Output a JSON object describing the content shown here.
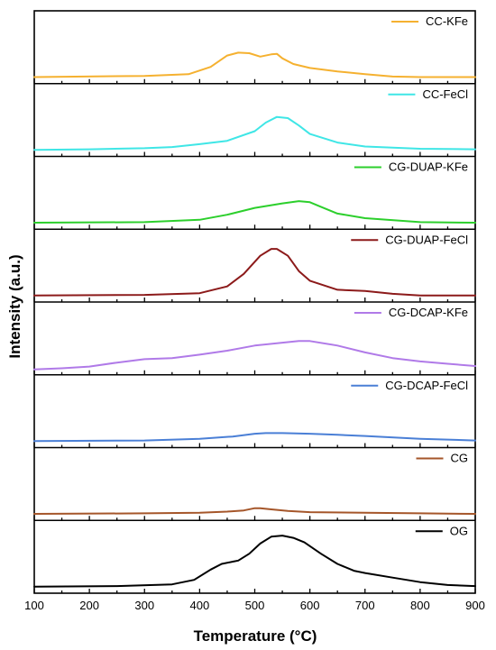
{
  "chart_data": {
    "type": "line",
    "xlabel": "Temperature (°C)",
    "ylabel": "Intensity (a.u.)",
    "xlim": [
      100,
      900
    ],
    "xticks": [
      "100",
      "200",
      "300",
      "400",
      "500",
      "600",
      "700",
      "800",
      "900"
    ],
    "xtick_values": [
      100,
      200,
      300,
      400,
      500,
      600,
      700,
      800,
      900
    ],
    "stacked_panels": true,
    "legend_position": "top-right of each panel",
    "series": [
      {
        "name": "CC-KFe",
        "color": "#f5b130",
        "x": [
          100,
          300,
          380,
          420,
          450,
          470,
          490,
          510,
          530,
          540,
          550,
          570,
          600,
          650,
          700,
          750,
          800,
          900
        ],
        "y": [
          0.02,
          0.04,
          0.07,
          0.2,
          0.4,
          0.45,
          0.44,
          0.38,
          0.42,
          0.43,
          0.35,
          0.25,
          0.18,
          0.12,
          0.07,
          0.03,
          0.02,
          0.02
        ]
      },
      {
        "name": "CC-FeCl",
        "color": "#3fe6e6",
        "x": [
          100,
          200,
          300,
          350,
          400,
          450,
          500,
          520,
          540,
          560,
          580,
          600,
          650,
          700,
          800,
          900
        ],
        "y": [
          0.02,
          0.03,
          0.05,
          0.07,
          0.12,
          0.18,
          0.35,
          0.5,
          0.6,
          0.58,
          0.45,
          0.3,
          0.15,
          0.08,
          0.04,
          0.03
        ]
      },
      {
        "name": "CG-DUAP-KFe",
        "color": "#2ccf2c",
        "x": [
          100,
          300,
          400,
          450,
          500,
          550,
          580,
          600,
          620,
          650,
          700,
          800,
          900
        ],
        "y": [
          0.02,
          0.03,
          0.07,
          0.16,
          0.28,
          0.36,
          0.4,
          0.38,
          0.3,
          0.18,
          0.1,
          0.03,
          0.02
        ]
      },
      {
        "name": "CG-DUAP-FeCl",
        "color": "#8c1a1a",
        "x": [
          100,
          300,
          400,
          450,
          480,
          510,
          530,
          540,
          560,
          580,
          600,
          650,
          700,
          750,
          800,
          900
        ],
        "y": [
          0.02,
          0.03,
          0.06,
          0.18,
          0.4,
          0.72,
          0.84,
          0.84,
          0.72,
          0.45,
          0.28,
          0.12,
          0.1,
          0.05,
          0.02,
          0.02
        ]
      },
      {
        "name": "CG-DCAP-KFe",
        "color": "#b07ae8",
        "x": [
          100,
          150,
          200,
          250,
          300,
          350,
          400,
          450,
          500,
          550,
          580,
          600,
          650,
          700,
          750,
          800,
          850,
          900
        ],
        "y": [
          0.0,
          0.02,
          0.05,
          0.12,
          0.18,
          0.2,
          0.26,
          0.33,
          0.42,
          0.47,
          0.5,
          0.5,
          0.42,
          0.3,
          0.2,
          0.14,
          0.1,
          0.06
        ]
      },
      {
        "name": "CG-DCAP-FeCl",
        "color": "#4a7fd6",
        "x": [
          100,
          300,
          400,
          460,
          500,
          520,
          550,
          600,
          650,
          700,
          800,
          900
        ],
        "y": [
          0.02,
          0.03,
          0.06,
          0.1,
          0.15,
          0.16,
          0.16,
          0.15,
          0.13,
          0.11,
          0.06,
          0.03
        ]
      },
      {
        "name": "CG",
        "color": "#a5562a",
        "x": [
          100,
          300,
          400,
          450,
          480,
          500,
          510,
          530,
          560,
          600,
          700,
          800,
          900
        ],
        "y": [
          0.02,
          0.03,
          0.04,
          0.06,
          0.08,
          0.12,
          0.12,
          0.1,
          0.07,
          0.05,
          0.04,
          0.03,
          0.02
        ]
      },
      {
        "name": "OG",
        "color": "#000000",
        "x": [
          100,
          250,
          350,
          390,
          420,
          440,
          460,
          470,
          490,
          510,
          530,
          550,
          570,
          590,
          620,
          650,
          680,
          700,
          750,
          800,
          850,
          900
        ],
        "y": [
          0.02,
          0.03,
          0.06,
          0.14,
          0.32,
          0.42,
          0.46,
          0.48,
          0.6,
          0.78,
          0.9,
          0.92,
          0.88,
          0.8,
          0.6,
          0.42,
          0.3,
          0.26,
          0.18,
          0.1,
          0.05,
          0.03
        ]
      }
    ]
  }
}
